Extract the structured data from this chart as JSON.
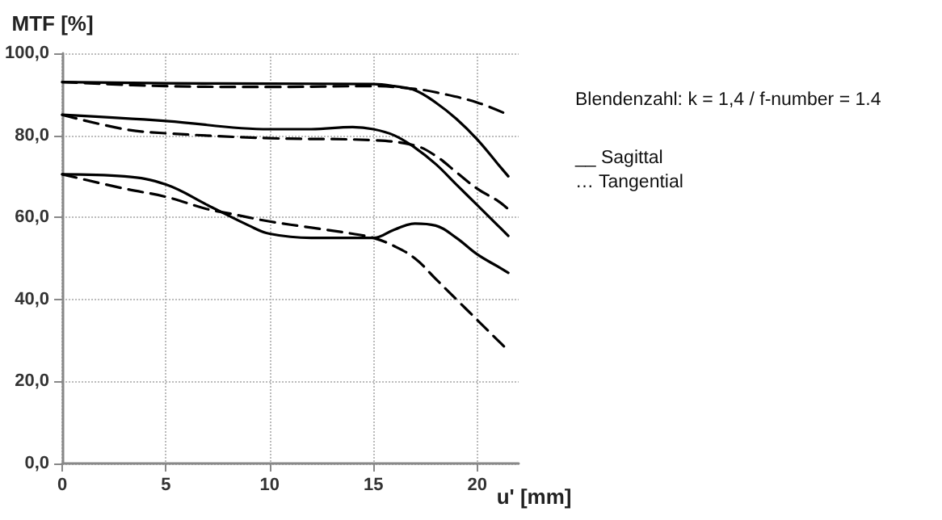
{
  "chart_data": {
    "type": "line",
    "xlabel": "u' [mm]",
    "ylabel": "MTF [%]",
    "xlim": [
      0,
      22
    ],
    "xticks": [
      0,
      5,
      10,
      15,
      20
    ],
    "ylim": [
      0,
      100
    ],
    "yticks": [
      {
        "value": 0,
        "label": "0,0"
      },
      {
        "value": 20,
        "label": "20,0"
      },
      {
        "value": 40,
        "label": "40,0"
      },
      {
        "value": 60,
        "label": "60,0"
      },
      {
        "value": 80,
        "label": "80,0"
      },
      {
        "value": 100,
        "label": "100,0"
      }
    ],
    "grid": true,
    "marker": "none",
    "annotations": [
      "Blendenzahl: k = 1,4 / f-number = 1.4",
      "__ Sagittal",
      "… Tangential"
    ],
    "series": [
      {
        "color": "#000000",
        "line_style": "solid",
        "x": [
          0,
          5,
          10,
          15,
          16,
          17,
          18,
          19,
          20,
          21,
          21.5
        ],
        "values": [
          93,
          92.7,
          92.6,
          92.5,
          92,
          91,
          88,
          84,
          79,
          73,
          70
        ]
      },
      {
        "color": "#000000",
        "line_style": "dashed",
        "x": [
          0,
          5,
          10,
          15,
          17,
          18,
          20,
          21.5
        ],
        "values": [
          93,
          92,
          91.8,
          92,
          91.3,
          90.5,
          88,
          85
        ]
      },
      {
        "color": "#000000",
        "line_style": "solid",
        "x": [
          0,
          5,
          10,
          12,
          14,
          15,
          16,
          17,
          18,
          19,
          20,
          21,
          21.5
        ],
        "values": [
          85,
          83.5,
          81.5,
          81.5,
          82,
          81.5,
          80,
          77,
          73,
          68,
          63,
          58,
          55.5
        ]
      },
      {
        "color": "#000000",
        "line_style": "dashed",
        "x": [
          0,
          3,
          5,
          10,
          15,
          17,
          18,
          19,
          20,
          21,
          21.5
        ],
        "values": [
          85,
          81.5,
          80.5,
          79.3,
          78.8,
          77.5,
          75,
          71,
          67,
          64,
          62
        ]
      },
      {
        "color": "#000000",
        "line_style": "solid",
        "x": [
          0,
          3,
          5,
          7,
          9,
          10,
          12,
          14,
          15,
          16,
          17,
          18,
          19,
          20,
          21,
          21.5
        ],
        "values": [
          70.5,
          70,
          68,
          63,
          58,
          56,
          55,
          55,
          55,
          57,
          58.5,
          58,
          55,
          51,
          48,
          46.5
        ]
      },
      {
        "color": "#000000",
        "line_style": "dashed",
        "x": [
          0,
          3,
          5,
          7,
          8,
          10,
          12,
          14,
          15,
          16,
          17,
          18,
          19,
          20,
          21,
          21.5
        ],
        "values": [
          70.5,
          67,
          65,
          62,
          61,
          59,
          57.5,
          56,
          55,
          53,
          50,
          45,
          40,
          35,
          30,
          27.5
        ]
      }
    ]
  }
}
